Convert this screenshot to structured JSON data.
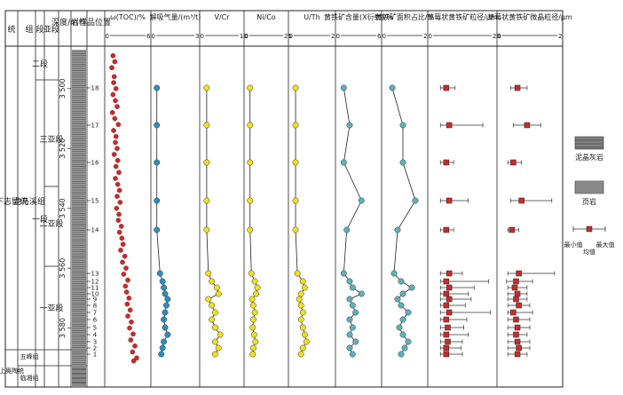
{
  "strat_headers": {
    "system": "统",
    "group": "组",
    "member": "段",
    "submember": "亚段",
    "depth": "深度/m",
    "lithology": "岩性",
    "sample_position": "样品位置"
  },
  "strat": {
    "series_upper": "下志留统",
    "series_lower": "上奥陶统",
    "formation": "龙马溪组",
    "formation_lower1": "五峰组",
    "formation_lower2": "临湘组",
    "member_1": "一段",
    "member_2": "二段",
    "sub_1": "一亚段",
    "sub_2": "二亚段",
    "sub_3": "三亚段"
  },
  "depth_ticks": [
    "3 500",
    "3 520",
    "3 540",
    "3 560",
    "3 580"
  ],
  "sample_labels": [
    "18",
    "17",
    "16",
    "15",
    "14",
    "13",
    "12",
    "11",
    "10",
    "9",
    "8",
    "7",
    "6",
    "5",
    "4",
    "3",
    "2",
    "1"
  ],
  "legend": {
    "limestone": "泥晶灰岩",
    "shale": "页岩",
    "min": "最小值",
    "mean": "均值",
    "max": "最大值"
  },
  "colors": {
    "toc": "#cc2a2a",
    "gas": "#2a8fbf",
    "vcr": "#f0e11c",
    "nico": "#f0e11c",
    "uth": "#f0e11c",
    "pyrite": "#5cb3b8",
    "framboid": "#cc2a2a",
    "shale": "#909090",
    "limestone": "#808080"
  },
  "chart_data": [
    {
      "type": "scatter",
      "title": "ω(TOC)/%",
      "xlim": [
        0,
        6
      ],
      "x_ticks": [
        "0",
        "6"
      ],
      "depth_m": [
        3489,
        3491,
        3493,
        3496,
        3498,
        3500,
        3502,
        3504,
        3506,
        3508,
        3510,
        3512,
        3514,
        3516,
        3518,
        3520,
        3522,
        3524,
        3526,
        3528,
        3530,
        3532,
        3534,
        3536,
        3538,
        3540,
        3542,
        3544,
        3546,
        3548,
        3550,
        3552,
        3554,
        3556,
        3558,
        3560,
        3562,
        3564,
        3566,
        3568,
        3570,
        3572,
        3574,
        3576,
        3578,
        3580,
        3582,
        3584,
        3586,
        3588,
        3590,
        3591
      ],
      "values": [
        0.5,
        0.8,
        0.3,
        0.7,
        0.6,
        1.0,
        0.5,
        0.9,
        1.2,
        0.4,
        0.8,
        1.4,
        0.6,
        1.0,
        0.9,
        1.2,
        0.7,
        1.3,
        1.0,
        1.5,
        0.9,
        1.3,
        1.6,
        1.2,
        1.7,
        1.1,
        1.5,
        1.4,
        1.9,
        1.6,
        2.0,
        2.2,
        1.8,
        2.5,
        2.1,
        2.7,
        2.3,
        3.0,
        2.6,
        2.8,
        3.2,
        2.9,
        3.4,
        3.0,
        3.6,
        3.3,
        3.9,
        3.5,
        4.2,
        3.8,
        4.5,
        4.0
      ]
    },
    {
      "type": "line",
      "title": "解吸气量/(m³/t)",
      "xlim": [
        0,
        3
      ],
      "x_ticks": [
        "0",
        "3"
      ],
      "samples": [
        "18",
        "17",
        "16",
        "15",
        "14",
        "13",
        "12",
        "11",
        "10",
        "9",
        "8",
        "7",
        "6",
        "5",
        "4",
        "3",
        "2",
        "1"
      ],
      "values": [
        0.05,
        0.05,
        0.05,
        0.05,
        0.05,
        0.3,
        0.5,
        0.6,
        0.7,
        0.9,
        0.8,
        0.7,
        0.6,
        0.7,
        0.9,
        0.6,
        0.5,
        0.4
      ]
    },
    {
      "type": "line",
      "title": "V/Cr",
      "xlim": [
        0,
        10
      ],
      "x_ticks": [
        "0",
        "10"
      ],
      "samples": [
        "18",
        "17",
        "16",
        "15",
        "14",
        "13",
        "12",
        "11",
        "10",
        "9",
        "8",
        "7",
        "6",
        "5",
        "4",
        "3",
        "2",
        "1"
      ],
      "values": [
        0.5,
        0.5,
        0.5,
        0.5,
        0.5,
        1.0,
        2.0,
        3.5,
        4.0,
        1.0,
        2.0,
        3.0,
        2.0,
        3.0,
        4.5,
        3.0,
        4.0,
        3.0
      ]
    },
    {
      "type": "line",
      "title": "Ni/Co",
      "xlim": [
        0,
        25
      ],
      "x_ticks": [
        "0",
        "25"
      ],
      "samples": [
        "18",
        "17",
        "16",
        "15",
        "14",
        "13",
        "12",
        "11",
        "10",
        "9",
        "8",
        "7",
        "6",
        "5",
        "4",
        "3",
        "2",
        "1"
      ],
      "values": [
        0.5,
        0.5,
        0.5,
        0.5,
        0.5,
        1.5,
        4.0,
        6.0,
        5.0,
        2.0,
        3.0,
        4.0,
        3.0,
        2.5,
        3.5,
        4.5,
        3.0,
        2.5
      ]
    },
    {
      "type": "line",
      "title": "U/Th",
      "xlim": [
        0,
        2
      ],
      "x_ticks": [
        "0",
        "2"
      ],
      "samples": [
        "18",
        "17",
        "16",
        "15",
        "14",
        "13",
        "12",
        "11",
        "10",
        "9",
        "8",
        "7",
        "6",
        "5",
        "4",
        "3",
        "2",
        "1"
      ],
      "values": [
        0.1,
        0.1,
        0.1,
        0.1,
        0.1,
        0.2,
        0.5,
        0.6,
        0.4,
        0.3,
        0.4,
        0.5,
        0.4,
        0.5,
        0.6,
        0.7,
        0.5,
        0.4
      ]
    },
    {
      "type": "line",
      "title": "黄铁矿含量(X衍射)/%",
      "xlim": [
        0,
        6
      ],
      "x_ticks": [
        "0",
        "6"
      ],
      "samples": [
        "18",
        "17",
        "16",
        "15",
        "14",
        "13",
        "12",
        "11",
        "10",
        "9",
        "8",
        "7",
        "6",
        "5",
        "4",
        "3",
        "2",
        "1"
      ],
      "values": [
        0.5,
        1.5,
        0.5,
        3.5,
        1.0,
        0.5,
        1.5,
        2.0,
        3.5,
        1.5,
        2.0,
        2.5,
        1.5,
        2.0,
        1.5,
        2.5,
        1.5,
        2.0
      ]
    },
    {
      "type": "line",
      "title": "黄铁矿面积占比/%",
      "xlim": [
        0,
        2
      ],
      "x_ticks": [
        "0",
        "2"
      ],
      "samples": [
        "18",
        "17",
        "16",
        "15",
        "14",
        "13",
        "12",
        "11",
        "10",
        "9",
        "8",
        "7",
        "6",
        "5",
        "4",
        "3",
        "2",
        "1"
      ],
      "values": [
        0.3,
        0.9,
        0.9,
        1.6,
        0.6,
        0.4,
        0.8,
        1.4,
        0.9,
        0.6,
        0.8,
        1.2,
        0.9,
        0.7,
        0.9,
        1.2,
        1.0,
        0.8
      ]
    },
    {
      "type": "scatter",
      "title": "草莓状黄铁矿粒径/μm",
      "xlim": [
        0,
        20
      ],
      "x_ticks": [
        "0",
        "20"
      ],
      "samples": [
        "18",
        "17",
        "16",
        "15",
        "14",
        "13",
        "12",
        "11",
        "10",
        "9",
        "8",
        "7",
        "6",
        "5",
        "4",
        "3",
        "2",
        "1"
      ],
      "mean": [
        4.5,
        5.5,
        4.5,
        5.5,
        4.5,
        5.5,
        4.5,
        5.5,
        4.5,
        5.5,
        4.5,
        5.5,
        4.5,
        5.0,
        4.5,
        5.0,
        4.5,
        4.5
      ],
      "min": [
        2.5,
        2.5,
        2.5,
        2.5,
        2.5,
        2.5,
        2.5,
        2.5,
        2.5,
        2.5,
        2.5,
        2.5,
        2.5,
        2.5,
        2.5,
        2.5,
        2.5,
        2.5
      ],
      "max": [
        7.5,
        17.0,
        7.0,
        12.0,
        7.0,
        10.0,
        19.0,
        14.0,
        12.0,
        13.0,
        11.0,
        19.5,
        11.5,
        10.5,
        12.0,
        10.0,
        9.5,
        10.0
      ]
    },
    {
      "type": "scatter",
      "title": "草莓状黄铁矿微晶粒径/μm",
      "xlim": [
        0,
        2
      ],
      "x_ticks": [
        "0",
        "2"
      ],
      "samples": [
        "18",
        "17",
        "16",
        "15",
        "14",
        "13",
        "12",
        "11",
        "10",
        "9",
        "8",
        "7",
        "6",
        "5",
        "4",
        "3",
        "2",
        "1"
      ],
      "mean": [
        0.55,
        0.9,
        0.4,
        0.7,
        0.35,
        0.6,
        0.5,
        0.45,
        0.55,
        0.5,
        0.6,
        0.4,
        0.5,
        0.55,
        0.5,
        0.55,
        0.6,
        0.55
      ],
      "min": [
        0.3,
        0.4,
        0.2,
        0.3,
        0.2,
        0.2,
        0.15,
        0.2,
        0.2,
        0.2,
        0.2,
        0.2,
        0.2,
        0.2,
        0.2,
        0.2,
        0.2,
        0.2
      ],
      "max": [
        0.9,
        1.4,
        0.7,
        1.8,
        0.6,
        1.9,
        1.1,
        0.9,
        0.9,
        0.9,
        1.0,
        1.1,
        1.0,
        1.0,
        0.9,
        1.0,
        1.0,
        0.9
      ]
    }
  ]
}
